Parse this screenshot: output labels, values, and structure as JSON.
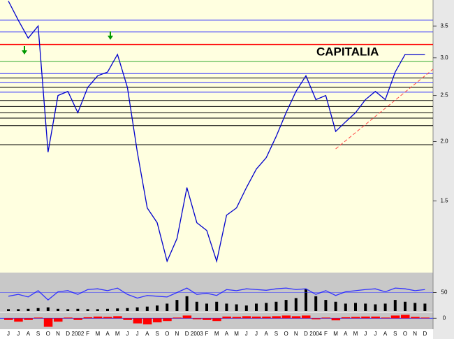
{
  "chart_data": [
    {
      "type": "line",
      "title": "CAPITALIA",
      "categories": [
        "J",
        "J",
        "A",
        "S",
        "O",
        "N",
        "D",
        "2002",
        "F",
        "M",
        "A",
        "M",
        "J",
        "J",
        "A",
        "S",
        "O",
        "N",
        "D",
        "2003",
        "F",
        "M",
        "A",
        "M",
        "J",
        "J",
        "A",
        "S",
        "O",
        "N",
        "D",
        "2004",
        "F",
        "M",
        "A",
        "M",
        "J",
        "J",
        "A",
        "S",
        "O",
        "N",
        "D"
      ],
      "series": [
        {
          "color": "#0000cc",
          "values": [
            3.95,
            3.6,
            3.3,
            3.5,
            1.9,
            2.5,
            2.55,
            2.3,
            2.6,
            2.75,
            2.8,
            3.05,
            2.6,
            1.9,
            1.45,
            1.35,
            1.12,
            1.25,
            1.6,
            1.35,
            1.3,
            1.12,
            1.4,
            1.45,
            1.6,
            1.75,
            1.85,
            2.05,
            2.3,
            2.55,
            2.75,
            2.45,
            2.5,
            2.1,
            2.2,
            2.3,
            2.45,
            2.55,
            2.45,
            2.8,
            3.05,
            3.05,
            3.05
          ]
        }
      ],
      "ylim": [
        1.06,
        3.97
      ],
      "log": true,
      "yticks": [
        {
          "value": 1.5,
          "label": "1.5"
        },
        {
          "value": 2,
          "label": "2.0"
        },
        {
          "value": 2.5,
          "label": "2.5"
        },
        {
          "value": 3,
          "label": "3.0"
        },
        {
          "value": 3.5,
          "label": "3.5"
        }
      ],
      "hlines": [
        {
          "value": 3.6,
          "color": "#3333ff"
        },
        {
          "value": 3.4,
          "color": "#3333ff"
        },
        {
          "value": 3.2,
          "color": "#ff0000"
        },
        {
          "value": 2.95,
          "color": "#33aa33"
        },
        {
          "value": 2.78,
          "color": "#3333ff"
        },
        {
          "value": 2.72,
          "color": "#000000"
        },
        {
          "value": 2.66,
          "color": "#3333ff"
        },
        {
          "value": 2.6,
          "color": "#000000"
        },
        {
          "value": 2.54,
          "color": "#3333ff"
        },
        {
          "value": 2.44,
          "color": "#000000"
        },
        {
          "value": 2.37,
          "color": "#000000"
        },
        {
          "value": 2.3,
          "color": "#000000"
        },
        {
          "value": 2.24,
          "color": "#000000"
        },
        {
          "value": 2.16,
          "color": "#000000"
        },
        {
          "value": 1.97,
          "color": "#000000"
        }
      ],
      "trendline": {
        "color": "#ff4444",
        "from": {
          "index": 33,
          "value": 1.93
        },
        "to": {
          "index": 42,
          "value": 2.75
        }
      }
    },
    {
      "type": "line",
      "series": [
        {
          "color": "#3333ff",
          "values": [
            40,
            45,
            38,
            55,
            30,
            52,
            55,
            45,
            58,
            60,
            55,
            62,
            45,
            35,
            42,
            40,
            38,
            50,
            62,
            45,
            48,
            42,
            58,
            55,
            60,
            58,
            56,
            60,
            62,
            58,
            60,
            45,
            55,
            42,
            52,
            55,
            58,
            60,
            52,
            62,
            60,
            55,
            58
          ]
        }
      ],
      "ylim": [
        0,
        100
      ],
      "yticks": [
        50
      ],
      "bars": {
        "color": "#000000",
        "values": [
          5,
          5,
          6,
          8,
          10,
          6,
          5,
          6,
          5,
          5,
          6,
          7,
          8,
          10,
          12,
          15,
          20,
          30,
          40,
          25,
          20,
          25,
          20,
          18,
          15,
          20,
          22,
          25,
          30,
          35,
          60,
          40,
          30,
          25,
          20,
          22,
          20,
          18,
          20,
          30,
          25,
          22,
          20
        ]
      },
      "y2lim": [
        0,
        100
      ]
    },
    {
      "type": "bar",
      "color": "#ff0000",
      "values": [
        -0.05,
        -0.1,
        -0.05,
        0.02,
        -0.25,
        -0.1,
        0.02,
        -0.05,
        0.03,
        0.05,
        0.04,
        0.06,
        -0.05,
        -0.15,
        -0.18,
        -0.12,
        -0.08,
        0.02,
        0.08,
        -0.03,
        -0.05,
        -0.08,
        0.05,
        0.04,
        0.06,
        0.05,
        0.05,
        0.06,
        0.08,
        0.06,
        0.08,
        -0.03,
        0.02,
        -0.06,
        0.03,
        0.04,
        0.05,
        0.05,
        0.02,
        0.08,
        0.1,
        0.04,
        0.02
      ],
      "ylim": [
        -0.3,
        0.15
      ],
      "yticks": [
        0
      ]
    }
  ]
}
